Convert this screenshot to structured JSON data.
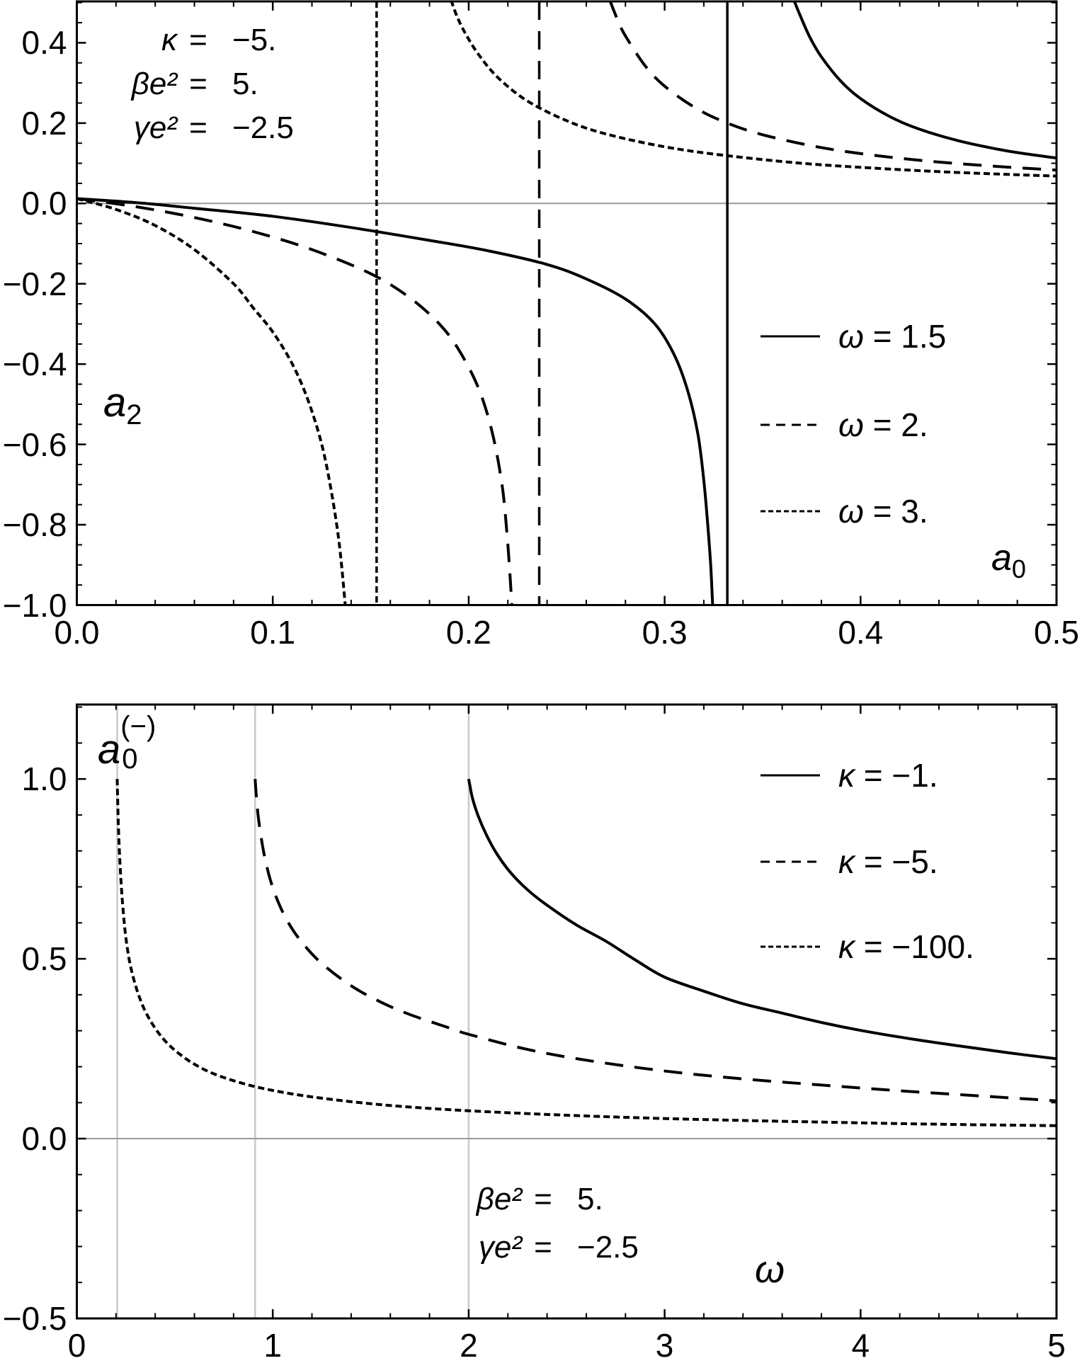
{
  "chart_data": [
    {
      "type": "line",
      "title": "",
      "xlim": [
        0,
        0.5
      ],
      "ylim": [
        -1.0,
        0.503
      ],
      "grid": false,
      "legend_position": "right-inside",
      "xlabel": {
        "base": "a",
        "sub": "0"
      },
      "ylabel": {
        "base": "a",
        "sub": "2"
      },
      "annotations": [
        {
          "sym": "κ",
          "eq": "=",
          "value": "−5."
        },
        {
          "sym": "βe²",
          "eq": "=",
          "value": "5."
        },
        {
          "sym": "γe²",
          "eq": "=",
          "value": "−2.5"
        }
      ],
      "legend": [
        {
          "sym": "ω",
          "rest": " = 1.5",
          "style": "solid"
        },
        {
          "sym": "ω",
          "rest": " = 2.",
          "style": "dashed"
        },
        {
          "sym": "ω",
          "rest": " = 3.",
          "style": "dotted"
        }
      ],
      "x_ticks": {
        "values": [
          0,
          0.1,
          0.2,
          0.3,
          0.4,
          0.5
        ],
        "labels": [
          "0.0",
          "0.1",
          "0.2",
          "0.3",
          "0.4",
          "0.5"
        ],
        "minor_step": 0.02
      },
      "y_ticks": {
        "values": [
          0.4,
          0.2,
          0.0,
          -0.2,
          -0.4,
          -0.6,
          -0.8,
          -1.0
        ],
        "labels": [
          "0.4",
          "0.2",
          "0.0",
          "−0.2",
          "−0.4",
          "−0.6",
          "−0.8",
          "−1.0"
        ],
        "minor_step": 0.05
      },
      "hline_y": 0,
      "vlines": [
        {
          "x": 0.332,
          "style": "solid",
          "meaning": "asymptote omega=1.5"
        },
        {
          "x": 0.236,
          "style": "dashed",
          "meaning": "asymptote omega=2"
        },
        {
          "x": 0.153,
          "style": "dotted",
          "meaning": "asymptote omega=3"
        }
      ],
      "series": [
        {
          "name": "omega-1.5-lower",
          "style": "solid",
          "points": [
            [
              0,
              0.012
            ],
            [
              0.03,
              0.002
            ],
            [
              0.06,
              -0.012
            ],
            [
              0.1,
              -0.032
            ],
            [
              0.14,
              -0.06
            ],
            [
              0.18,
              -0.092
            ],
            [
              0.21,
              -0.118
            ],
            [
              0.24,
              -0.152
            ],
            [
              0.26,
              -0.188
            ],
            [
              0.28,
              -0.238
            ],
            [
              0.295,
              -0.3
            ],
            [
              0.305,
              -0.378
            ],
            [
              0.312,
              -0.47
            ],
            [
              0.317,
              -0.575
            ],
            [
              0.32,
              -0.69
            ],
            [
              0.322,
              -0.8
            ],
            [
              0.3235,
              -0.9
            ],
            [
              0.3245,
              -1.0
            ]
          ]
        },
        {
          "name": "omega-1.5-upper",
          "style": "solid",
          "points": [
            [
              0.366,
              0.506
            ],
            [
              0.369,
              0.47
            ],
            [
              0.374,
              0.415
            ],
            [
              0.38,
              0.365
            ],
            [
              0.39,
              0.304
            ],
            [
              0.4,
              0.261
            ],
            [
              0.415,
              0.216
            ],
            [
              0.43,
              0.185
            ],
            [
              0.45,
              0.156
            ],
            [
              0.47,
              0.135
            ],
            [
              0.485,
              0.123
            ],
            [
              0.5,
              0.113
            ]
          ]
        },
        {
          "name": "omega-2-lower",
          "style": "dashed",
          "points": [
            [
              0,
              0.012
            ],
            [
              0.03,
              -0.008
            ],
            [
              0.06,
              -0.035
            ],
            [
              0.09,
              -0.07
            ],
            [
              0.12,
              -0.115
            ],
            [
              0.15,
              -0.175
            ],
            [
              0.17,
              -0.235
            ],
            [
              0.185,
              -0.3
            ],
            [
              0.195,
              -0.365
            ],
            [
              0.205,
              -0.46
            ],
            [
              0.212,
              -0.57
            ],
            [
              0.217,
              -0.7
            ],
            [
              0.2195,
              -0.82
            ],
            [
              0.221,
              -0.92
            ],
            [
              0.222,
              -1.0
            ]
          ]
        },
        {
          "name": "omega-2-upper",
          "style": "dashed",
          "points": [
            [
              0.272,
              0.506
            ],
            [
              0.276,
              0.457
            ],
            [
              0.28,
              0.417
            ],
            [
              0.29,
              0.343
            ],
            [
              0.3,
              0.292
            ],
            [
              0.315,
              0.24
            ],
            [
              0.33,
              0.204
            ],
            [
              0.35,
              0.171
            ],
            [
              0.38,
              0.139
            ],
            [
              0.41,
              0.118
            ],
            [
              0.44,
              0.103
            ],
            [
              0.47,
              0.092
            ],
            [
              0.5,
              0.083
            ]
          ]
        },
        {
          "name": "omega-3-lower",
          "style": "dotted",
          "points": [
            [
              0,
              0.012
            ],
            [
              0.02,
              -0.015
            ],
            [
              0.04,
              -0.055
            ],
            [
              0.06,
              -0.115
            ],
            [
              0.08,
              -0.2
            ],
            [
              0.09,
              -0.26
            ],
            [
              0.1,
              -0.32
            ],
            [
              0.11,
              -0.4
            ],
            [
              0.118,
              -0.49
            ],
            [
              0.125,
              -0.6
            ],
            [
              0.13,
              -0.72
            ],
            [
              0.134,
              -0.85
            ],
            [
              0.137,
              -1.0
            ]
          ]
        },
        {
          "name": "omega-3-upper",
          "style": "dotted",
          "points": [
            [
              0.191,
              0.506
            ],
            [
              0.194,
              0.466
            ],
            [
              0.198,
              0.426
            ],
            [
              0.205,
              0.371
            ],
            [
              0.215,
              0.313
            ],
            [
              0.23,
              0.255
            ],
            [
              0.25,
              0.206
            ],
            [
              0.27,
              0.173
            ],
            [
              0.3,
              0.141
            ],
            [
              0.33,
              0.12
            ],
            [
              0.37,
              0.1
            ],
            [
              0.41,
              0.087
            ],
            [
              0.45,
              0.077
            ],
            [
              0.5,
              0.068
            ]
          ]
        }
      ],
      "colors": {
        "curve": "#000000",
        "zero_line": "#9a9a9a"
      }
    },
    {
      "type": "line",
      "title": "",
      "xlim": [
        0,
        5
      ],
      "ylim": [
        -0.5,
        1.207
      ],
      "grid": true,
      "legend_position": "right-inside",
      "xlabel": {
        "sym": "ω"
      },
      "ylabel": {
        "base": "a",
        "sub": "0",
        "sup": "(−)"
      },
      "annotations": [
        {
          "sym": "βe²",
          "eq": "=",
          "value": "5."
        },
        {
          "sym": "γe²",
          "eq": "=",
          "value": "−2.5"
        }
      ],
      "legend": [
        {
          "sym": "κ",
          "rest": " = −1.",
          "style": "solid"
        },
        {
          "sym": "κ",
          "rest": " = −5.",
          "style": "dashed"
        },
        {
          "sym": "κ",
          "rest": " = −100.",
          "style": "dotted"
        }
      ],
      "x_ticks": {
        "values": [
          0,
          1,
          2,
          3,
          4,
          5
        ],
        "labels": [
          "0",
          "1",
          "2",
          "3",
          "4",
          "5"
        ],
        "minor_step": 0.2
      },
      "y_ticks": {
        "values": [
          1.0,
          0.5,
          0.0,
          -0.5
        ],
        "labels": [
          "1.0",
          "0.5",
          "0.0",
          "−0.5"
        ],
        "minor_step": 0.1
      },
      "hline_y": 0,
      "gridlines_x": [
        0.206,
        0.91,
        2.0
      ],
      "series": [
        {
          "name": "kappa-minus-1",
          "style": "solid",
          "points": [
            [
              2.0,
              1.0
            ],
            [
              2.005,
              0.985
            ],
            [
              2.02,
              0.945
            ],
            [
              2.05,
              0.895
            ],
            [
              2.09,
              0.845
            ],
            [
              2.14,
              0.795
            ],
            [
              2.21,
              0.742
            ],
            [
              2.3,
              0.692
            ],
            [
              2.4,
              0.649
            ],
            [
              2.55,
              0.594
            ],
            [
              2.7,
              0.549
            ],
            [
              2.85,
              0.497
            ],
            [
              3.0,
              0.449
            ],
            [
              3.2,
              0.41
            ],
            [
              3.4,
              0.375
            ],
            [
              3.6,
              0.349
            ],
            [
              3.8,
              0.323
            ],
            [
              4.0,
              0.301
            ],
            [
              4.25,
              0.278
            ],
            [
              4.5,
              0.258
            ],
            [
              4.75,
              0.239
            ],
            [
              5.0,
              0.222
            ]
          ]
        },
        {
          "name": "kappa-minus-5",
          "style": "dashed",
          "points": [
            [
              0.91,
              1.0
            ],
            [
              0.915,
              0.96
            ],
            [
              0.925,
              0.9
            ],
            [
              0.94,
              0.84
            ],
            [
              0.96,
              0.78
            ],
            [
              0.99,
              0.715
            ],
            [
              1.03,
              0.655
            ],
            [
              1.08,
              0.6
            ],
            [
              1.15,
              0.545
            ],
            [
              1.25,
              0.487
            ],
            [
              1.4,
              0.425
            ],
            [
              1.55,
              0.38
            ],
            [
              1.7,
              0.345
            ],
            [
              1.9,
              0.308
            ],
            [
              2.0,
              0.29
            ],
            [
              2.3,
              0.248
            ],
            [
              2.6,
              0.218
            ],
            [
              3.0,
              0.188
            ],
            [
              3.4,
              0.166
            ],
            [
              3.8,
              0.149
            ],
            [
              4.2,
              0.133
            ],
            [
              4.6,
              0.119
            ],
            [
              5.0,
              0.105
            ]
          ]
        },
        {
          "name": "kappa-minus-100",
          "style": "dotted",
          "points": [
            [
              0.206,
              1.0
            ],
            [
              0.208,
              0.95
            ],
            [
              0.212,
              0.87
            ],
            [
              0.218,
              0.79
            ],
            [
              0.226,
              0.71
            ],
            [
              0.237,
              0.63
            ],
            [
              0.25,
              0.56
            ],
            [
              0.27,
              0.49
            ],
            [
              0.3,
              0.425
            ],
            [
              0.34,
              0.365
            ],
            [
              0.39,
              0.315
            ],
            [
              0.45,
              0.272
            ],
            [
              0.52,
              0.237
            ],
            [
              0.6,
              0.207
            ],
            [
              0.7,
              0.18
            ],
            [
              0.85,
              0.153
            ],
            [
              1.0,
              0.134
            ],
            [
              1.2,
              0.116
            ],
            [
              1.5,
              0.097
            ],
            [
              1.8,
              0.084
            ],
            [
              2.2,
              0.072
            ],
            [
              2.7,
              0.061
            ],
            [
              3.2,
              0.053
            ],
            [
              3.8,
              0.046
            ],
            [
              4.4,
              0.04
            ],
            [
              5.0,
              0.036
            ]
          ]
        }
      ],
      "colors": {
        "curve": "#000000",
        "zero_line": "#9a9a9a",
        "gridline": "#c9c9c9"
      }
    }
  ]
}
